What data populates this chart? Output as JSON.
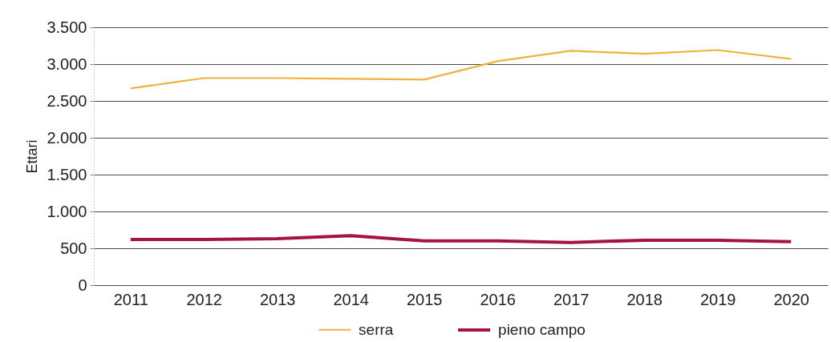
{
  "chart_data": {
    "type": "line",
    "ylabel": "Ettari",
    "categories": [
      "2011",
      "2012",
      "2013",
      "2014",
      "2015",
      "2016",
      "2017",
      "2018",
      "2019",
      "2020"
    ],
    "series": [
      {
        "name": "serra",
        "color": "#f0b23e",
        "values": [
          2670,
          2810,
          2810,
          2800,
          2790,
          3040,
          3180,
          3140,
          3190,
          3070
        ]
      },
      {
        "name": "pieno campo",
        "color": "#a3143f",
        "values": [
          620,
          620,
          630,
          670,
          600,
          600,
          580,
          610,
          610,
          590
        ]
      }
    ],
    "ylim": [
      0,
      3500
    ],
    "yticks": [
      0,
      500,
      {
        "value": 1000,
        "label": "1.000"
      },
      {
        "value": 1500,
        "label": "1.500"
      },
      {
        "value": 2000,
        "label": "2.000"
      },
      {
        "value": 2500,
        "label": "2.500"
      },
      {
        "value": 3000,
        "label": "3.000"
      },
      {
        "value": 3500,
        "label": "3.500"
      }
    ],
    "grid": "y",
    "legend": "bottom"
  }
}
